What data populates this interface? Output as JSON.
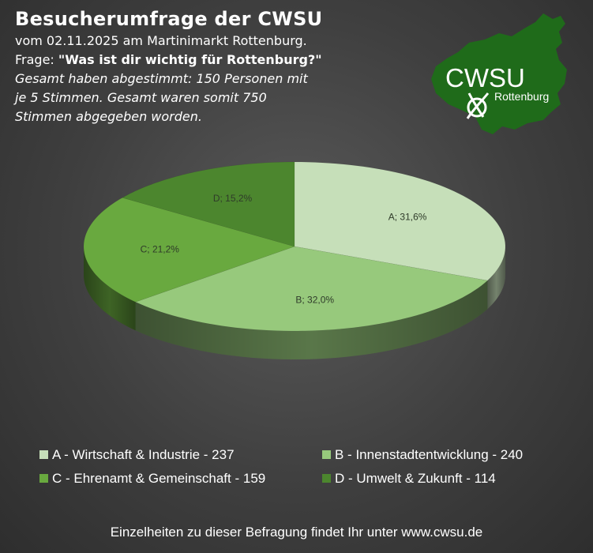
{
  "header": {
    "title": "Besucherumfrage der CWSU",
    "line1": "vom 02.11.2025 am Martinimarkt Rottenburg.",
    "question_prefix": "Frage: ",
    "question": "\"Was ist dir wichtig für Rottenburg?\"",
    "note_lines": [
      "Gesamt haben abgestimmt: 150 Personen mit",
      "je 5 Stimmen. Gesamt waren somit 750",
      "Stimmen abgegeben worden."
    ]
  },
  "logo": {
    "name": "CWSU",
    "city": "Rottenburg",
    "icon": "ballot-cross-icon",
    "color": "#1f6b1a"
  },
  "chart_data": {
    "type": "pie",
    "style": "3d",
    "labels": [
      "A",
      "B",
      "C",
      "D"
    ],
    "values": [
      237,
      240,
      159,
      114
    ],
    "data_labels": [
      "A; 31,6%",
      "B; 32,0%",
      "C; 21,2%",
      "D; 15,2%"
    ],
    "colors": [
      "#c6dfb9",
      "#97c97c",
      "#69a93f",
      "#4c862e"
    ],
    "legend": [
      "A - Wirtschaft & Industrie - 237",
      "B - Innenstadtentwicklung - 240",
      "C - Ehrenamt & Gemeinschaft - 159",
      "D - Umwelt & Zukunft - 114"
    ],
    "legend_position": "bottom"
  },
  "footer": "Einzelheiten zu dieser Befragung findet Ihr unter www.cwsu.de"
}
